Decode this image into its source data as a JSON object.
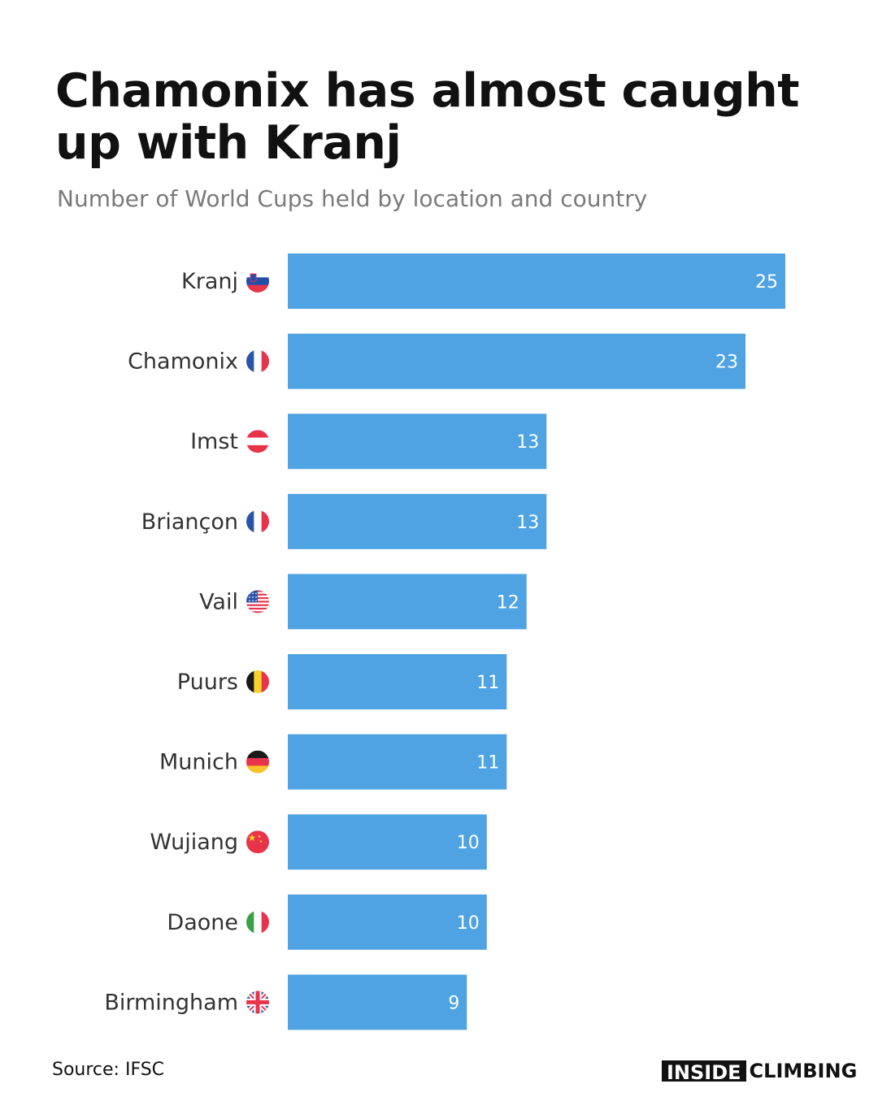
{
  "title": "Chamonix has almost caught up with Kranj",
  "subtitle": "Number of World Cups held by location and country",
  "source": "Source: IFSC",
  "brand": {
    "part1": "INSIDE",
    "part2": "CLIMBING"
  },
  "colors": {
    "bar": "#4fa3e3",
    "text": "#333333",
    "value_text": "#ffffff"
  },
  "chart_data": {
    "type": "bar",
    "orientation": "horizontal",
    "categories": [
      "Kranj",
      "Chamonix",
      "Imst",
      "Briançon",
      "Vail",
      "Puurs",
      "Munich",
      "Wujiang",
      "Daone",
      "Birmingham"
    ],
    "values": [
      25,
      23,
      13,
      13,
      12,
      11,
      11,
      10,
      10,
      9
    ],
    "flags": [
      "slovenia-flag-icon",
      "france-flag-icon",
      "austria-flag-icon",
      "france-flag-icon",
      "usa-flag-icon",
      "belgium-flag-icon",
      "germany-flag-icon",
      "china-flag-icon",
      "italy-flag-icon",
      "uk-flag-icon"
    ],
    "title": "Chamonix has almost caught up with Kranj",
    "subtitle": "Number of World Cups held by location and country",
    "xlim": [
      0,
      25
    ],
    "grid": false,
    "data_labels": true
  }
}
